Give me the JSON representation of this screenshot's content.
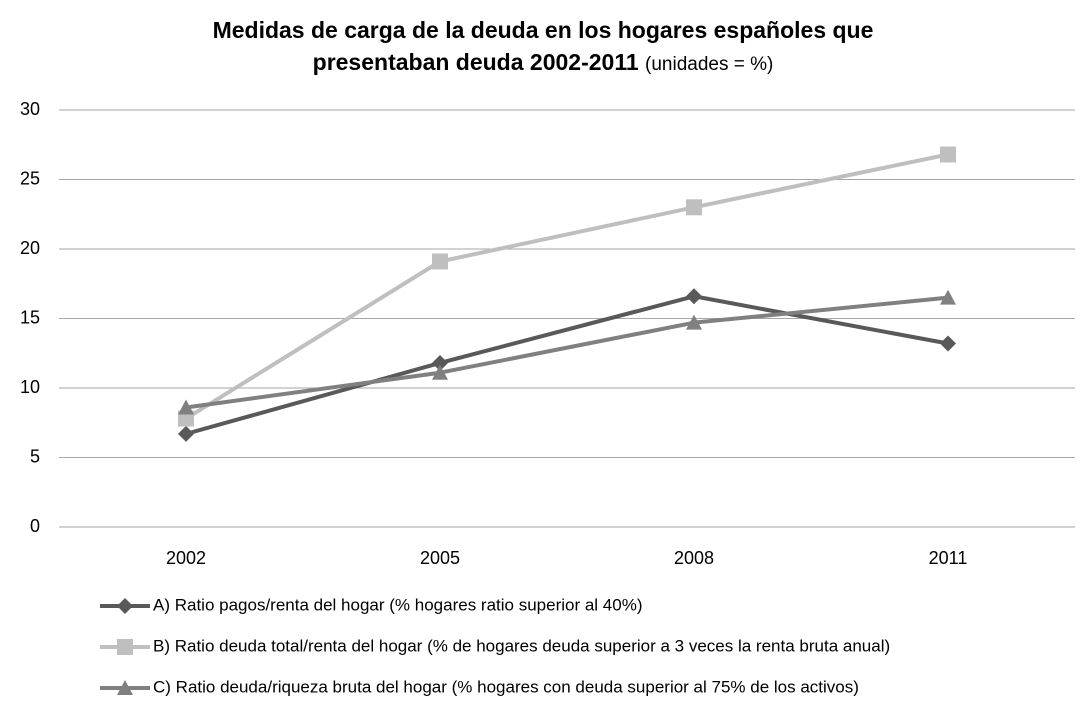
{
  "chart_data": {
    "type": "line",
    "title": "Medidas de carga de la deuda en los hogares españoles que presentaban deuda 2002-2011",
    "subtitle": "(unidades = %)",
    "categories": [
      "2002",
      "2005",
      "2008",
      "2011"
    ],
    "series": [
      {
        "name": "A) Ratio pagos/renta del hogar (% hogares ratio superior al 40%)",
        "color": "#595959",
        "marker": "diamond",
        "values": [
          6.7,
          11.8,
          16.6,
          13.2
        ]
      },
      {
        "name": "B) Ratio deuda total/renta del hogar (% de hogares deuda superior a 3 veces la renta bruta anual)",
        "color": "#bfbfbf",
        "marker": "square",
        "values": [
          7.8,
          19.1,
          23.0,
          26.8
        ]
      },
      {
        "name": "C) Ratio deuda/riqueza bruta del hogar (% hogares con deuda superior al 75% de los activos)",
        "color": "#808080",
        "marker": "triangle",
        "values": [
          8.6,
          11.1,
          14.7,
          16.5
        ]
      }
    ],
    "ylim": [
      0,
      30
    ],
    "yticks": [
      0,
      5,
      10,
      15,
      20,
      25,
      30
    ],
    "grid": true,
    "legend": "bottom"
  }
}
